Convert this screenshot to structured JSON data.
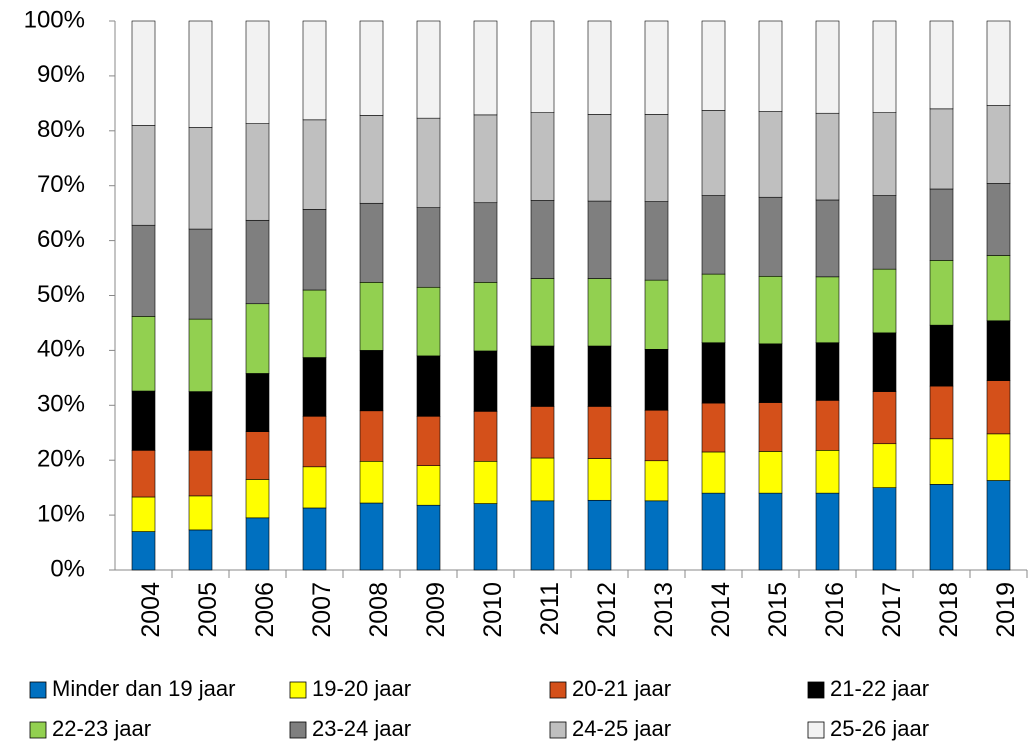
{
  "chart_data": {
    "type": "stacked-bar",
    "categories": [
      "2004",
      "2005",
      "2006",
      "2007",
      "2008",
      "2009",
      "2010",
      "2011",
      "2012",
      "2013",
      "2014",
      "2015",
      "2016",
      "2017",
      "2018",
      "2019"
    ],
    "series": [
      {
        "name": "Minder dan 19 jaar",
        "color": "#0070c0",
        "values": [
          7,
          7.3,
          9.5,
          11.3,
          12.2,
          11.8,
          12.1,
          12.6,
          12.7,
          12.6,
          14,
          14,
          14,
          15,
          15.6,
          16.3
        ]
      },
      {
        "name": "19-20 jaar",
        "color": "#ffff00",
        "values": [
          6.3,
          6.2,
          7,
          7.5,
          7.6,
          7.2,
          7.7,
          7.8,
          7.6,
          7.3,
          7.5,
          7.6,
          7.8,
          8,
          8.3,
          8.5
        ]
      },
      {
        "name": "20-21 jaar",
        "color": "#d4501a",
        "values": [
          8.5,
          8.3,
          8.7,
          9.2,
          9.2,
          9,
          9.1,
          9.4,
          9.5,
          9.2,
          8.9,
          8.9,
          9.1,
          9.5,
          9.6,
          9.7
        ]
      },
      {
        "name": "21-22 jaar",
        "color": "#000000",
        "values": [
          10.8,
          10.7,
          10.6,
          10.7,
          11,
          11,
          11,
          11,
          11,
          11.1,
          11,
          10.7,
          10.5,
          10.7,
          11.1,
          10.9
        ]
      },
      {
        "name": "22-23 jaar",
        "color": "#92d050",
        "values": [
          13.6,
          13.2,
          12.7,
          12.3,
          12.4,
          12.5,
          12.5,
          12.3,
          12.3,
          12.6,
          12.5,
          12.3,
          12,
          11.6,
          11.8,
          11.9
        ]
      },
      {
        "name": "23-24 jaar",
        "color": "#7f7f7f",
        "values": [
          16.6,
          16.4,
          15.2,
          14.7,
          14.4,
          14.5,
          14.5,
          14.2,
          14.1,
          14.3,
          14.3,
          14.4,
          14,
          13.4,
          13,
          13.1
        ]
      },
      {
        "name": "24-25 jaar",
        "color": "#bfbfbf",
        "values": [
          18.2,
          18.5,
          17.6,
          16.3,
          16,
          16.3,
          16,
          16,
          15.8,
          15.9,
          15.5,
          15.6,
          15.8,
          15.1,
          14.6,
          14.2
        ]
      },
      {
        "name": "25-26 jaar",
        "color": "#f2f2f2",
        "values": [
          19,
          19.4,
          18.7,
          18,
          17.2,
          17.7,
          17.1,
          16.7,
          17,
          17,
          16.3,
          16.5,
          16.8,
          16.7,
          16,
          15.4
        ]
      }
    ],
    "ylim": [
      0,
      100
    ],
    "yticks": [
      {
        "value": 0,
        "label": "0%"
      },
      {
        "value": 10,
        "label": "10%"
      },
      {
        "value": 20,
        "label": "20%"
      },
      {
        "value": 30,
        "label": "30%"
      },
      {
        "value": 40,
        "label": "40%"
      },
      {
        "value": 50,
        "label": "50%"
      },
      {
        "value": 60,
        "label": "60%"
      },
      {
        "value": 70,
        "label": "70%"
      },
      {
        "value": 80,
        "label": "80%"
      },
      {
        "value": 90,
        "label": "90%"
      },
      {
        "value": 100,
        "label": "100%"
      }
    ],
    "grid": false
  }
}
